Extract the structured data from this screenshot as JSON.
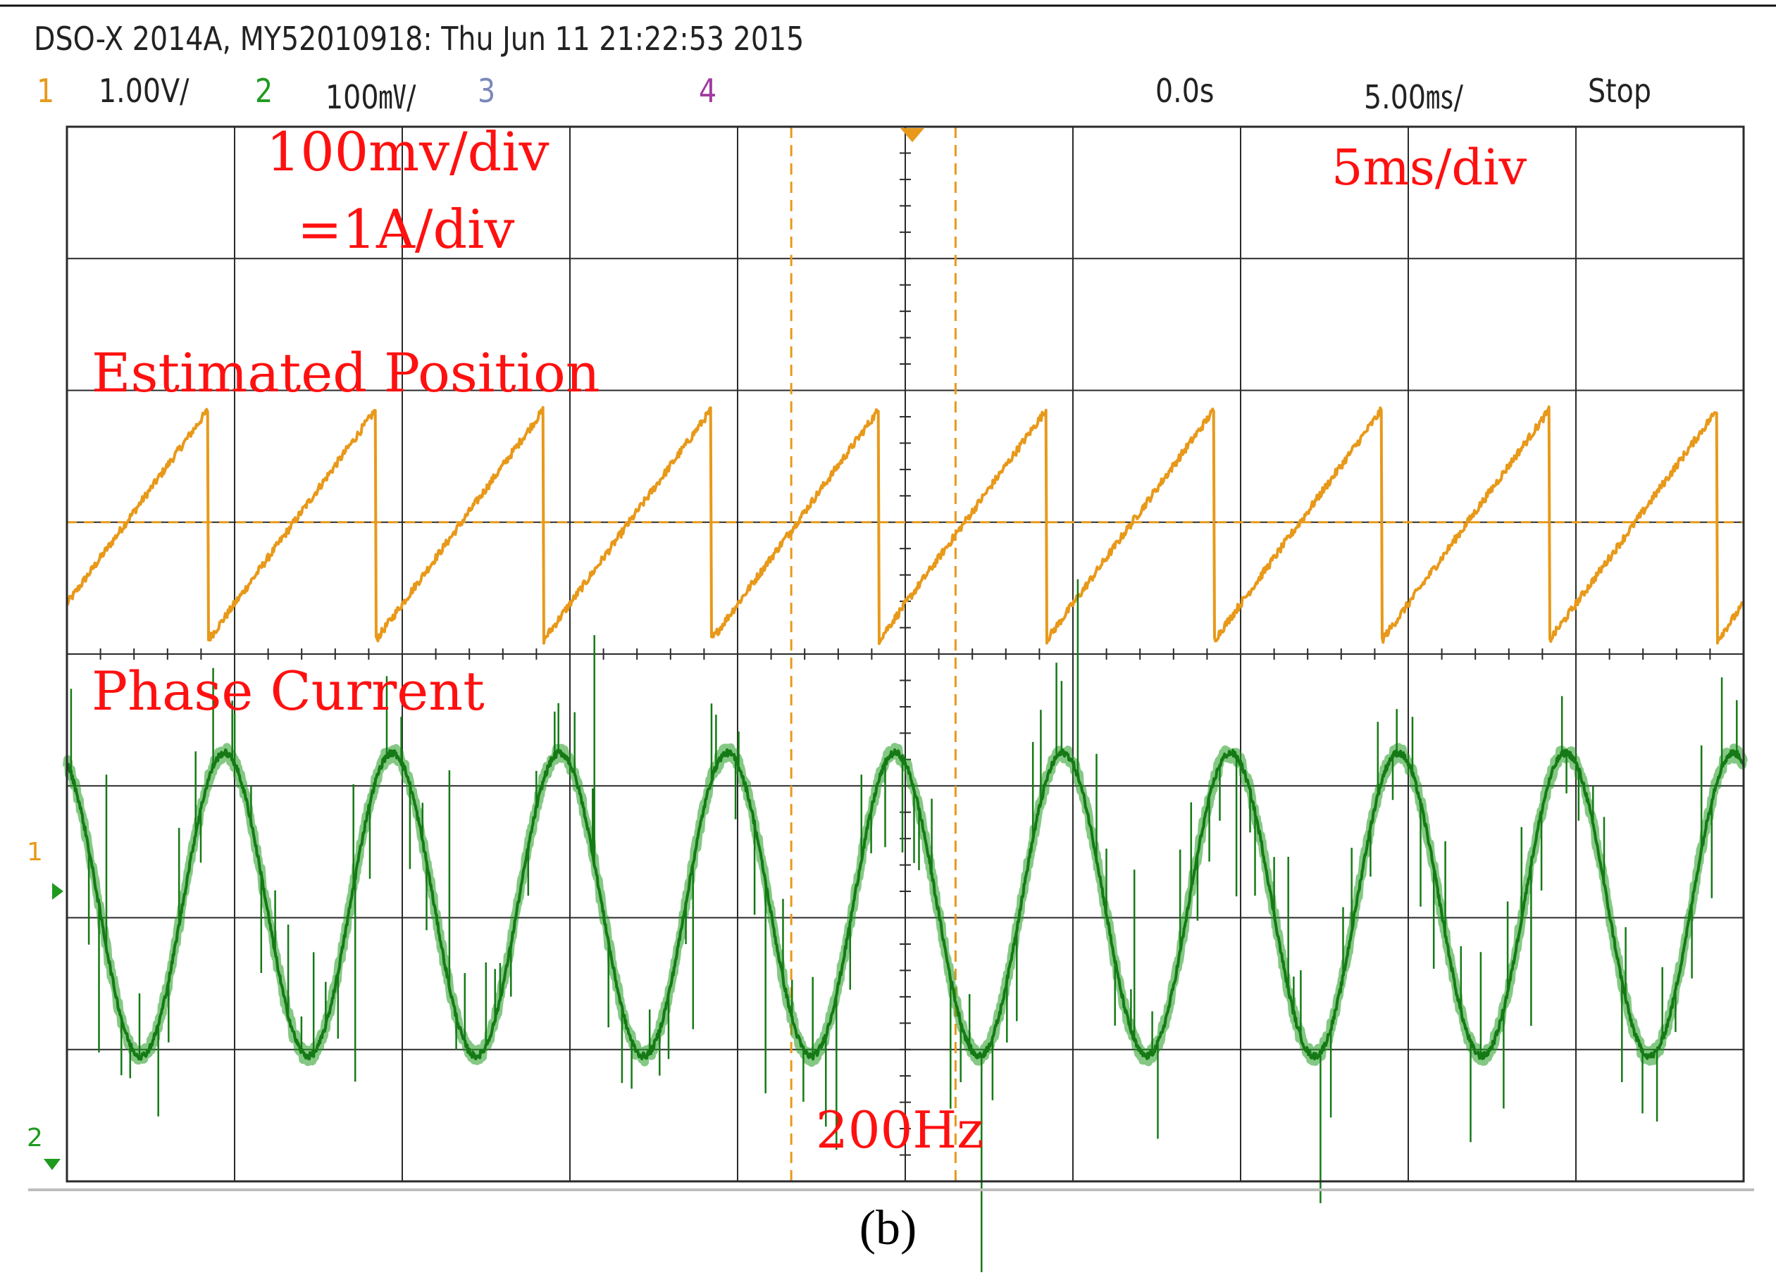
{
  "header": {
    "title": "DSO-X 2014A, MY52010918: Thu Jun 11 21:22:53 2015",
    "ch1_num": "1",
    "ch1_scale": "1.00V/",
    "ch2_num": "2",
    "ch2_scale": "100㎷/",
    "ch3_num": "3",
    "ch4_num": "4",
    "time_offset": "0.0s",
    "time_scale": "5.00㎳/",
    "run_state": "Stop"
  },
  "colors": {
    "ch1": "#e8991a",
    "ch2": "#1f9a1f",
    "ch3": "#7a87b8",
    "ch4": "#a03aa0",
    "grid": "#2a2a2a",
    "annotation": "#ff1010",
    "cursor": "#e8991a"
  },
  "markers": {
    "ch1_ground": "1",
    "ch2_ground": "2"
  },
  "annotations": {
    "ch2_scale_line1": "100mv/div",
    "ch2_scale_line2": "=1A/div",
    "time_div": "5ms/div",
    "trace1_label": "Estimated Position",
    "trace2_label": "Phase Current",
    "frequency": "200Hz"
  },
  "caption": "(b)",
  "chart_data": {
    "type": "line",
    "x_unit": "ms",
    "xlim": [
      -25,
      25
    ],
    "x_divisions": 10,
    "y_divisions": 8,
    "series": [
      {
        "name": "Estimated Position",
        "channel": 1,
        "waveform": "sawtooth",
        "period_ms": 5,
        "phase_ms": 4.2,
        "y_min_div": -0.9,
        "y_max_div": 0.85,
        "center_div": 1.0
      },
      {
        "name": "Phase Current",
        "channel": 2,
        "waveform": "sine",
        "period_ms": 5,
        "frequency_hz": 200,
        "amplitude_div": 1.15,
        "peak_time_ms": -0.3,
        "center_div": -1.9,
        "noise_div": 0.05
      }
    ],
    "cursors_ms": [
      -3.4,
      1.5
    ]
  }
}
